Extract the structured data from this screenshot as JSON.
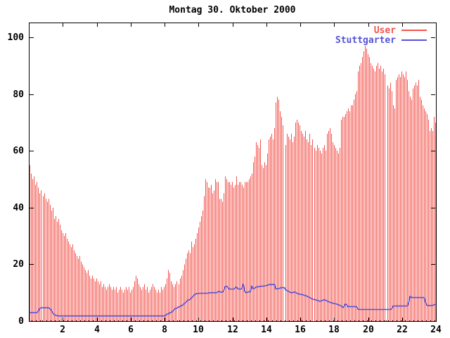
{
  "title": "Montag 30. Oktober 2000",
  "legend": [
    {
      "label": "User",
      "color": "#f3544d"
    },
    {
      "label": "Stuttgarter",
      "color": "#5454d8"
    }
  ],
  "axis_color": "#000000",
  "background_color": "#ffffff",
  "chart_data": {
    "type": "bar",
    "subtype": "impulses-with-line-overlay",
    "title": "Montag 30. Oktober 2000",
    "xlabel": "",
    "ylabel": "",
    "x_unit": "hour-of-day",
    "sample_interval_minutes": 5,
    "xlim": [
      0,
      24
    ],
    "ylim": [
      0,
      105
    ],
    "x_ticks": [
      2,
      4,
      6,
      8,
      10,
      12,
      14,
      16,
      18,
      20,
      22,
      24
    ],
    "y_ticks": [
      0,
      20,
      40,
      60,
      80,
      100
    ],
    "grid": "dotted-zero-baseline",
    "legend_position": "top-right-inside",
    "series": [
      {
        "name": "User",
        "style": "impulses",
        "color": "#f3544d",
        "values": [
          55,
          52,
          50,
          51,
          48,
          49,
          47,
          45,
          46,
          44,
          45,
          43,
          42,
          43,
          41,
          39,
          40,
          36,
          37,
          35,
          36,
          34,
          32,
          31,
          30,
          31,
          29,
          28,
          27,
          26,
          27,
          25,
          24,
          23,
          22,
          23,
          21,
          20,
          19,
          18,
          17,
          18,
          16,
          15,
          16,
          15,
          14,
          15,
          14,
          13,
          14,
          12,
          13,
          12,
          11,
          12,
          13,
          12,
          11,
          12,
          11,
          12,
          10,
          11,
          12,
          11,
          10,
          11,
          12,
          11,
          12,
          10,
          11,
          12,
          14,
          16,
          15,
          13,
          12,
          11,
          12,
          13,
          11,
          12,
          10,
          11,
          12,
          13,
          12,
          11,
          10,
          11,
          10,
          12,
          11,
          12,
          13,
          15,
          18,
          17,
          14,
          13,
          12,
          13,
          14,
          13,
          15,
          16,
          18,
          20,
          22,
          24,
          25,
          24,
          28,
          26,
          27,
          29,
          31,
          33,
          35,
          37,
          39,
          44,
          50,
          49,
          47,
          47,
          48,
          45,
          46,
          50,
          49,
          49,
          43,
          43,
          42,
          45,
          51,
          50,
          49,
          49,
          48,
          49,
          47,
          48,
          51,
          48,
          49,
          49,
          48,
          47,
          49,
          49,
          49,
          50,
          51,
          52,
          56,
          58,
          63,
          62,
          61,
          64,
          55,
          54,
          56,
          55,
          59,
          64,
          65,
          66,
          64,
          68,
          77,
          79,
          78,
          74,
          72,
          69,
          0,
          62,
          66,
          65,
          64,
          66,
          63,
          65,
          70,
          71,
          70,
          69,
          67,
          66,
          65,
          67,
          64,
          63,
          66,
          62,
          64,
          61,
          60,
          62,
          61,
          60,
          59,
          61,
          62,
          60,
          66,
          67,
          68,
          66,
          63,
          62,
          61,
          60,
          59,
          61,
          71,
          72,
          72,
          73,
          74,
          75,
          74,
          76,
          76,
          78,
          80,
          81,
          88,
          90,
          91,
          93,
          95,
          97,
          96,
          94,
          93,
          91,
          90,
          89,
          88,
          90,
          91,
          89,
          90,
          88,
          89,
          87,
          0,
          83,
          82,
          84,
          81,
          76,
          75,
          85,
          86,
          87,
          86,
          88,
          87,
          86,
          88,
          85,
          81,
          79,
          78,
          82,
          83,
          84,
          83,
          85,
          79,
          78,
          76,
          75,
          74,
          73,
          71,
          67,
          68,
          67,
          72,
          70
        ]
      },
      {
        "name": "Stuttgarter",
        "style": "lines",
        "color": "#5454d8",
        "values": [
          3,
          3,
          3,
          3,
          3,
          3,
          3.5,
          4.5,
          4.7,
          4.7,
          4.7,
          4.7,
          4.7,
          4.7,
          4.5,
          4,
          3,
          2.5,
          2,
          2,
          1.8,
          1.8,
          1.8,
          1.8,
          1.8,
          1.8,
          1.8,
          1.8,
          1.8,
          1.8,
          1.8,
          1.8,
          1.8,
          1.8,
          1.8,
          1.8,
          1.8,
          1.8,
          1.8,
          1.8,
          1.8,
          1.8,
          1.8,
          1.8,
          1.8,
          1.8,
          1.8,
          1.8,
          1.8,
          1.8,
          1.8,
          1.8,
          1.8,
          1.8,
          1.8,
          1.8,
          1.8,
          1.8,
          1.8,
          1.8,
          1.8,
          1.8,
          1.8,
          1.8,
          1.8,
          1.8,
          1.8,
          1.8,
          1.8,
          1.8,
          1.8,
          1.8,
          1.8,
          1.8,
          1.8,
          1.8,
          1.8,
          1.8,
          1.8,
          1.8,
          1.8,
          1.8,
          1.8,
          1.8,
          1.8,
          1.8,
          1.8,
          1.8,
          1.8,
          1.8,
          1.8,
          1.8,
          1.8,
          1.8,
          1.8,
          1.8,
          2,
          2.5,
          2.5,
          3,
          3,
          3.5,
          4,
          4.5,
          4.5,
          5,
          5,
          5.5,
          5.5,
          6,
          6.5,
          7,
          7.5,
          7.5,
          8,
          8.5,
          9,
          9.5,
          9.7,
          9.7,
          9.8,
          9.8,
          9.8,
          9.8,
          9.8,
          9.8,
          9.8,
          10,
          10,
          10,
          10,
          10,
          10,
          10.3,
          10.5,
          10.2,
          10.2,
          10.5,
          12,
          12.3,
          12,
          11.3,
          11.3,
          11.3,
          11.3,
          11.5,
          12,
          11.5,
          11.3,
          11.3,
          11.5,
          13,
          10.5,
          10,
          10.2,
          10.3,
          10.3,
          12.4,
          11.5,
          11.5,
          12,
          12,
          12.2,
          12.2,
          12.3,
          12.3,
          12.4,
          12.5,
          12.6,
          12.8,
          13,
          12.8,
          12.9,
          13,
          11.3,
          11.4,
          11.5,
          11.6,
          11.8,
          11.8,
          11.8,
          11,
          10.8,
          10.5,
          10.2,
          10,
          10,
          10.3,
          10.1,
          9.8,
          9.6,
          9.5,
          9.4,
          9.3,
          9.1,
          9,
          8.8,
          8.5,
          8.3,
          8,
          7.8,
          7.6,
          7.5,
          7.4,
          7.2,
          7,
          7.1,
          7.3,
          7.5,
          7.4,
          7.2,
          6.9,
          6.7,
          6.5,
          6.4,
          6.2,
          6.1,
          6,
          5.8,
          5.6,
          5.4,
          5,
          4.8,
          5.9,
          5.9,
          5.1,
          5.1,
          5.1,
          5.1,
          5.1,
          5.1,
          5.1,
          4.3,
          4.1,
          4.1,
          4.1,
          4.1,
          4.1,
          4.1,
          4.1,
          4.1,
          4.1,
          4.1,
          4.1,
          4.1,
          4.1,
          4.1,
          4.1,
          4.1,
          4.1,
          4.1,
          4.1,
          4.1,
          4.1,
          4.1,
          4.1,
          4.3,
          5.3,
          5.3,
          5.3,
          5.3,
          5.3,
          5.3,
          5.3,
          5.3,
          5.3,
          5.3,
          5.3,
          6.5,
          8.8,
          8.3,
          8.3,
          8.3,
          8.3,
          8.3,
          8.3,
          8.3,
          8.3,
          8.3,
          8.3,
          6.5,
          5.5,
          5.5,
          5.5,
          5.5,
          5.5,
          5.8,
          5.8
        ]
      }
    ]
  }
}
